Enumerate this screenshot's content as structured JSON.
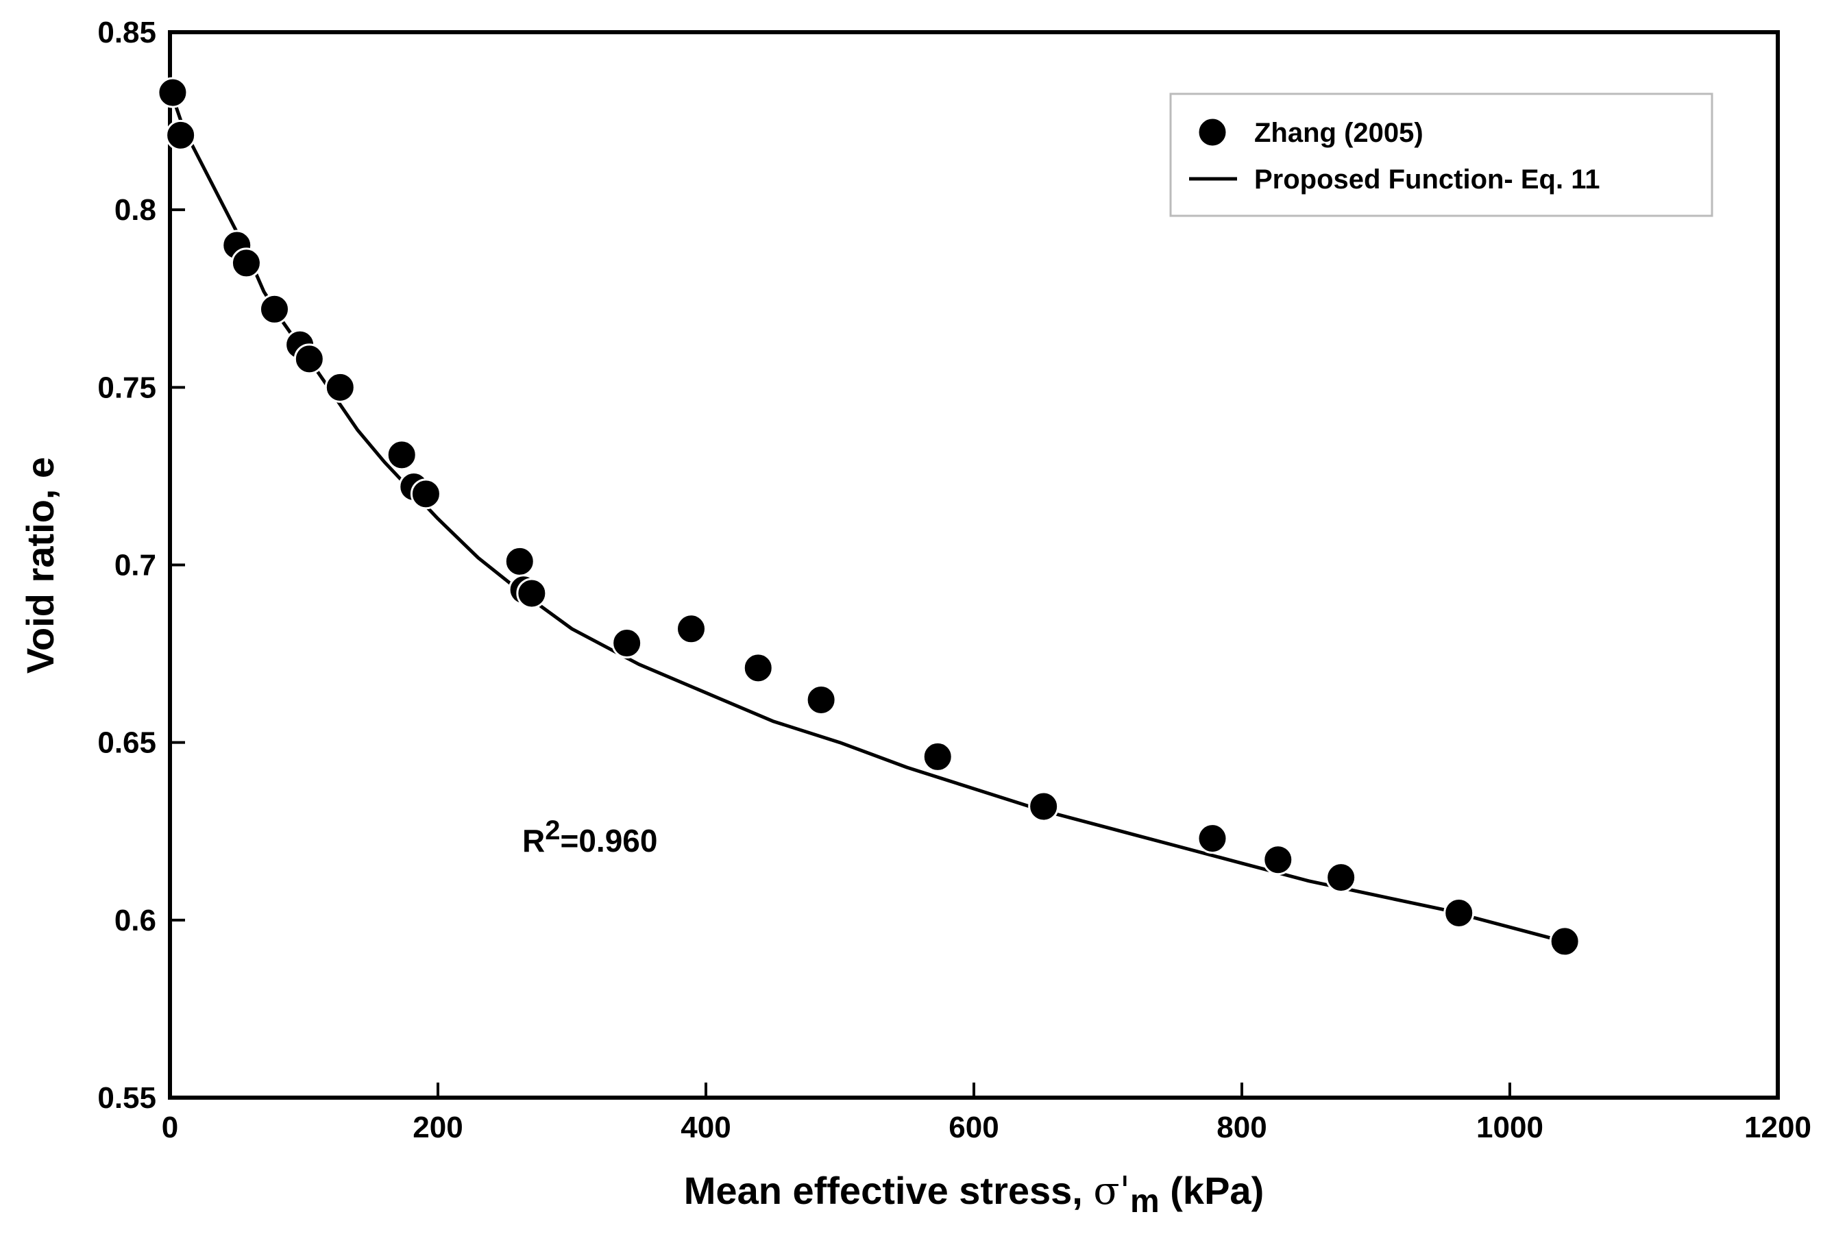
{
  "chart_data": {
    "type": "scatter",
    "xlabel": "Mean effective stress, ",
    "xlabel_symbol": "σ'",
    "xlabel_sub": "m",
    "xlabel_unit": " (kPa)",
    "ylabel": "Void ratio, e",
    "xlim": [
      0,
      1200
    ],
    "ylim": [
      0.55,
      0.85
    ],
    "xticks": [
      0,
      200,
      400,
      600,
      800,
      1000,
      1200
    ],
    "xtick_labels": [
      "0",
      "200",
      "400",
      "600",
      "800",
      "1000",
      "1200"
    ],
    "yticks": [
      0.55,
      0.6,
      0.65,
      0.7,
      0.75,
      0.8,
      0.85
    ],
    "ytick_labels": [
      "0.55",
      "0.6",
      "0.65",
      "0.7",
      "0.75",
      "0.8",
      "0.85"
    ],
    "legend_position": "top-right",
    "series": [
      {
        "name": "Zhang (2005)",
        "kind": "points",
        "color": "#000000",
        "x": [
          2,
          8,
          50,
          57,
          78,
          97,
          104,
          127,
          173,
          182,
          191,
          261,
          264,
          270,
          341,
          389,
          439,
          486,
          573,
          652,
          778,
          827,
          874,
          962,
          1041
        ],
        "y": [
          0.833,
          0.821,
          0.79,
          0.785,
          0.772,
          0.762,
          0.758,
          0.75,
          0.731,
          0.722,
          0.72,
          0.701,
          0.693,
          0.692,
          0.678,
          0.682,
          0.671,
          0.662,
          0.646,
          0.632,
          0.623,
          0.617,
          0.612,
          0.602,
          0.594
        ]
      },
      {
        "name": "Proposed Function- Eq. 11",
        "kind": "line",
        "color": "#000000",
        "x": [
          0,
          10,
          25,
          40,
          55,
          70,
          85,
          100,
          120,
          140,
          160,
          180,
          200,
          230,
          260,
          300,
          350,
          400,
          450,
          500,
          550,
          600,
          650,
          700,
          750,
          800,
          850,
          900,
          950,
          1000,
          1040
        ],
        "y": [
          0.834,
          0.823,
          0.812,
          0.801,
          0.79,
          0.777,
          0.768,
          0.76,
          0.749,
          0.738,
          0.729,
          0.721,
          0.713,
          0.702,
          0.693,
          0.682,
          0.672,
          0.664,
          0.656,
          0.65,
          0.643,
          0.637,
          0.631,
          0.626,
          0.621,
          0.616,
          0.611,
          0.607,
          0.603,
          0.598,
          0.594
        ]
      }
    ],
    "annotations": [
      {
        "prefix": "R",
        "sup": "2",
        "suffix": "=0.960"
      }
    ]
  }
}
